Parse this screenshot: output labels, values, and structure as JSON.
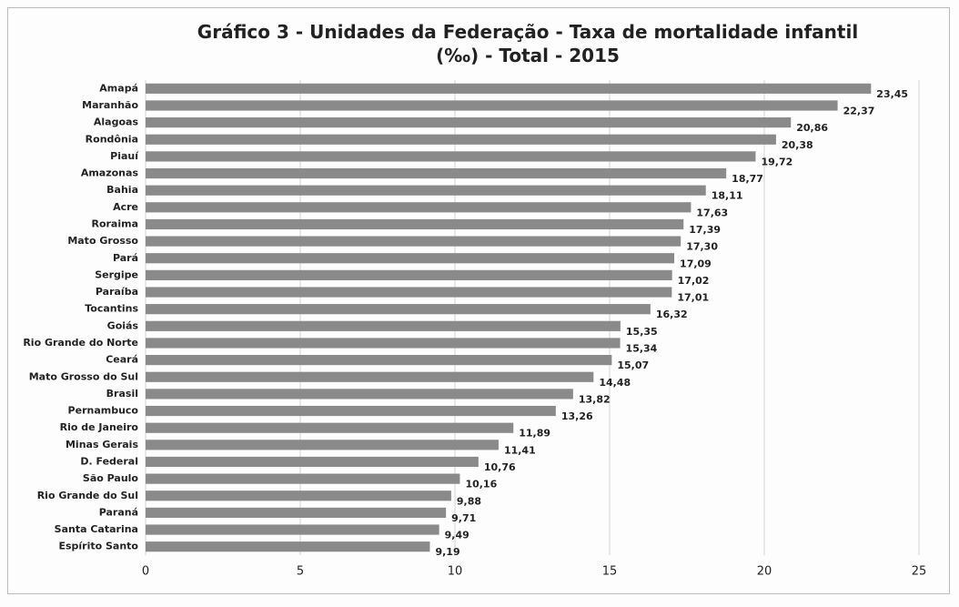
{
  "chart_data": {
    "type": "bar",
    "orientation": "horizontal",
    "title": "Gráfico 3 - Unidades da Federação - Taxa de mortalidade infantil (‰) - Total - 2015",
    "categories": [
      "Amapá",
      "Maranhão",
      "Alagoas",
      "Rondônia",
      "Piauí",
      "Amazonas",
      "Bahia",
      "Acre",
      "Roraima",
      "Mato Grosso",
      "Pará",
      "Sergipe",
      "Paraíba",
      "Tocantins",
      "Goiás",
      "Rio Grande do Norte",
      "Ceará",
      "Mato Grosso do Sul",
      "Brasil",
      "Pernambuco",
      "Rio de Janeiro",
      "Minas Gerais",
      "D. Federal",
      "São Paulo",
      "Rio Grande do Sul",
      "Paraná",
      "Santa Catarina",
      "Espírito Santo"
    ],
    "values": [
      23.45,
      22.37,
      20.86,
      20.38,
      19.72,
      18.77,
      18.11,
      17.63,
      17.39,
      17.3,
      17.09,
      17.02,
      17.01,
      16.32,
      15.35,
      15.34,
      15.07,
      14.48,
      13.82,
      13.26,
      11.89,
      11.41,
      10.76,
      10.16,
      9.88,
      9.71,
      9.49,
      9.19
    ],
    "value_labels": [
      "23,45",
      "22,37",
      "20,86",
      "20,38",
      "19,72",
      "18,77",
      "18,11",
      "17,63",
      "17,39",
      "17,30",
      "17,09",
      "17,02",
      "17,01",
      "16,32",
      "15,35",
      "15,34",
      "15,07",
      "14,48",
      "13,82",
      "13,26",
      "11,89",
      "11,41",
      "10,76",
      "10,16",
      "9,88",
      "9,71",
      "9,49",
      "9,19"
    ],
    "color": "#8a8a8a",
    "xlim": [
      0,
      25
    ],
    "xticks": [
      0,
      5,
      10,
      15,
      20,
      25
    ],
    "grid": true
  }
}
